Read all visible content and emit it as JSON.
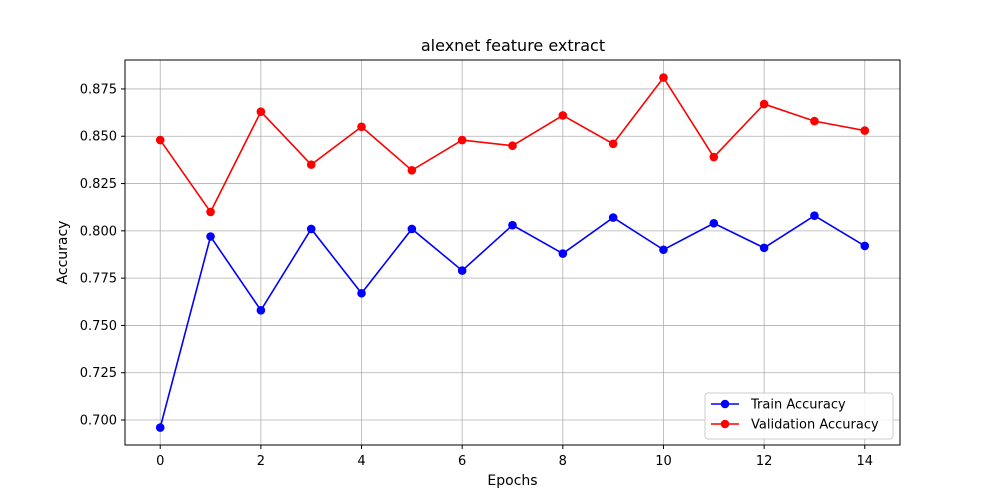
{
  "chart_data": {
    "type": "line",
    "title": "alexnet feature extract",
    "xlabel": "Epochs",
    "ylabel": "Accuracy",
    "x": [
      0,
      1,
      2,
      3,
      4,
      5,
      6,
      7,
      8,
      9,
      10,
      11,
      12,
      13,
      14
    ],
    "xlim": [
      -0.7,
      14.7
    ],
    "ylim": [
      0.6868,
      0.8903
    ],
    "xticks": [
      "0",
      "2",
      "4",
      "6",
      "8",
      "10",
      "12",
      "14"
    ],
    "yticks": [
      "0.700",
      "0.725",
      "0.750",
      "0.775",
      "0.800",
      "0.825",
      "0.850",
      "0.875"
    ],
    "grid": true,
    "legend_position": "lower right",
    "series": [
      {
        "name": "Train Accuracy",
        "color": "#0000ff",
        "marker": "circle",
        "values": [
          0.696,
          0.797,
          0.758,
          0.801,
          0.767,
          0.801,
          0.779,
          0.803,
          0.788,
          0.807,
          0.79,
          0.804,
          0.791,
          0.808,
          0.792
        ]
      },
      {
        "name": "Validation Accuracy",
        "color": "#ff0000",
        "marker": "circle",
        "values": [
          0.848,
          0.81,
          0.863,
          0.835,
          0.855,
          0.832,
          0.848,
          0.845,
          0.861,
          0.846,
          0.881,
          0.839,
          0.867,
          0.858,
          0.853
        ]
      }
    ]
  }
}
